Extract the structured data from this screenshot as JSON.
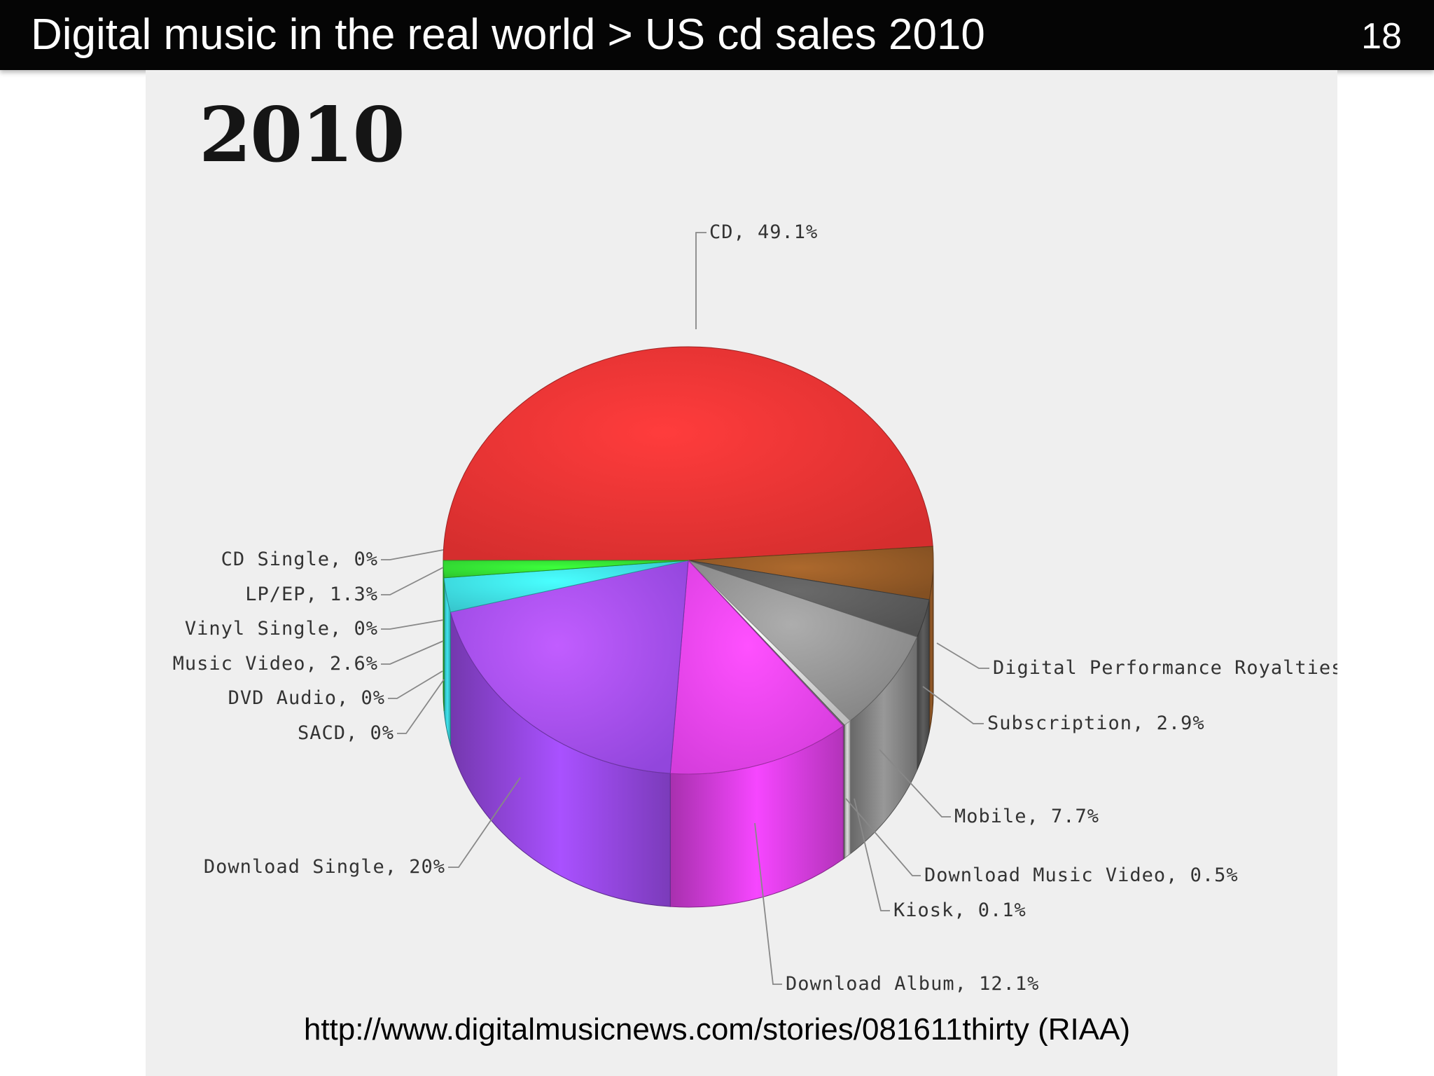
{
  "slide": {
    "title": "Digital music in the real world > US cd sales 2010",
    "page_number": "18",
    "source": "http://www.digitalmusicnews.com/stories/081611thirty (RIAA)"
  },
  "chart_data": {
    "type": "pie",
    "title": "2010",
    "slices": [
      {
        "label": "CD, 49.1%",
        "value": 49.1,
        "color": "#e03030"
      },
      {
        "label": "Digital Performance Royalties",
        "value": 4.0,
        "color": "#8a5424"
      },
      {
        "label": "Subscription, 2.9%",
        "value": 2.9,
        "color": "#555555"
      },
      {
        "label": "Mobile, 7.7%",
        "value": 7.7,
        "color": "#8a8a8a"
      },
      {
        "label": "Download Music Video, 0.5%",
        "value": 0.5,
        "color": "#c8c8c8"
      },
      {
        "label": "Kiosk, 0.1%",
        "value": 0.1,
        "color": "#777777"
      },
      {
        "label": "Download Album, 12.1%",
        "value": 12.1,
        "color": "#e040e8"
      },
      {
        "label": "Download Single, 20%",
        "value": 20.0,
        "color": "#9a4ae8"
      },
      {
        "label": "SACD, 0%",
        "value": 0,
        "color": "#3a7ae0"
      },
      {
        "label": "DVD Audio, 0%",
        "value": 0,
        "color": "#2a5ad0"
      },
      {
        "label": "Music Video, 2.6%",
        "value": 2.6,
        "color": "#3ad0d8"
      },
      {
        "label": "Vinyl Single, 0%",
        "value": 0,
        "color": "#2aaab0"
      },
      {
        "label": "LP/EP, 1.3%",
        "value": 1.3,
        "color": "#30d030"
      },
      {
        "label": "CD Single, 0%",
        "value": 0,
        "color": "#30d030"
      }
    ]
  }
}
